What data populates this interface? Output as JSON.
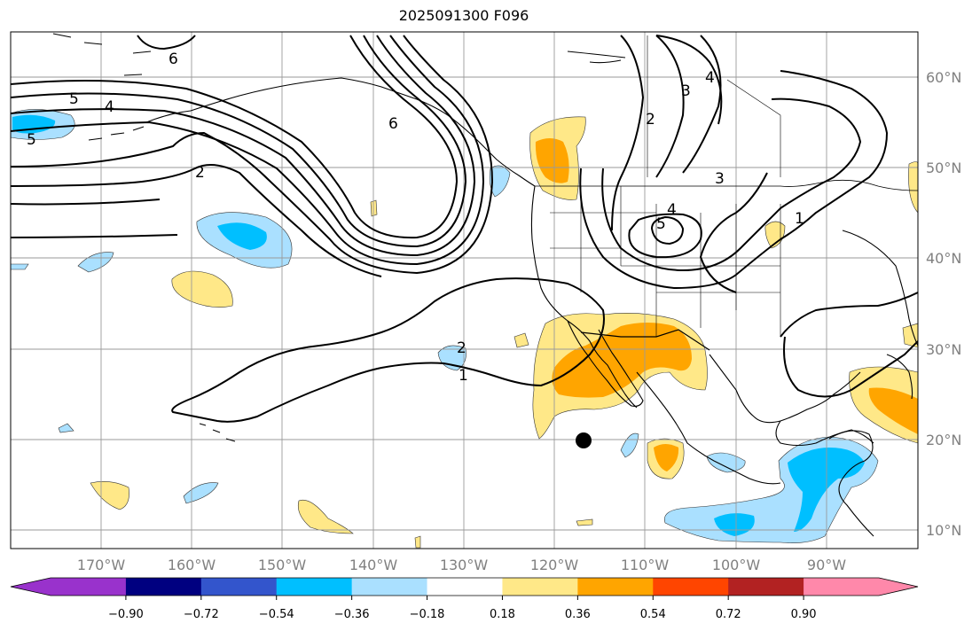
{
  "title": "2025091300 F096",
  "lat_labels": [
    "60°N",
    "50°N",
    "40°N",
    "30°N",
    "20°N",
    "10°N"
  ],
  "lon_labels": [
    "170°W",
    "160°W",
    "150°W",
    "140°W",
    "130°W",
    "120°W",
    "110°W",
    "100°W",
    "90°W"
  ],
  "colorbar": {
    "ticks": [
      "−0.90",
      "−0.72",
      "−0.54",
      "−0.36",
      "−0.18",
      "0.18",
      "0.36",
      "0.54",
      "0.72",
      "0.90"
    ],
    "colors": {
      "under": "#9932CC",
      "bins": [
        "#9932CC",
        "#000080",
        "#3355CC",
        "#00BFFF",
        "#AAE0FF",
        "#FFFFFF",
        "#FFE888",
        "#FFA500",
        "#FF4500",
        "#B22222",
        "#FF88AA"
      ],
      "over": "#FF88AA"
    }
  },
  "contour_labels": {
    "l1": "1",
    "l2": "2",
    "l3": "3",
    "l4": "4",
    "l5": "5",
    "l6": "6",
    "r2": "2",
    "r3": "3",
    "r4": "4",
    "r5": "5",
    "r1": "1",
    "rb3": "3",
    "s1": "1",
    "s2": "2"
  }
}
